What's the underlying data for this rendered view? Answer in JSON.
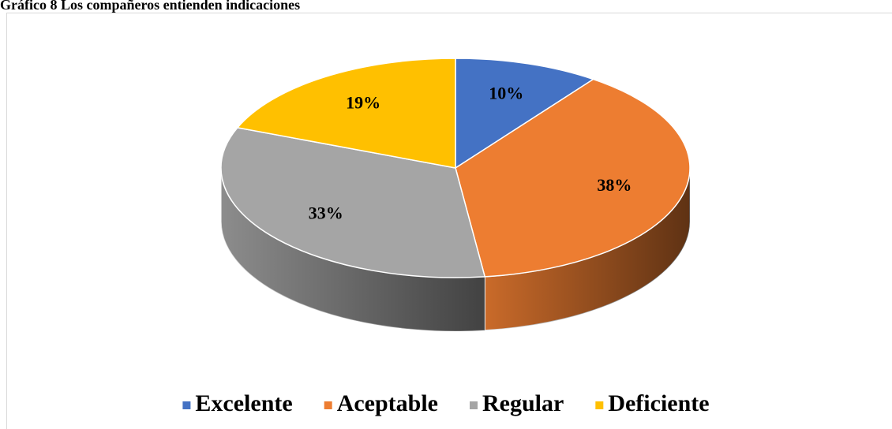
{
  "chart_data": {
    "type": "pie",
    "title": "Gráfico 8 Los compañeros entienden indicaciones",
    "categories": [
      "Excelente",
      "Aceptable",
      "Regular",
      "Deficiente"
    ],
    "values": [
      10,
      38,
      33,
      19
    ],
    "value_labels": [
      "10%",
      "38%",
      "33%",
      "19%"
    ],
    "colors": [
      "#4472c4",
      "#ed7d31",
      "#a5a5a5",
      "#ffc000"
    ],
    "legend": "bottom"
  }
}
